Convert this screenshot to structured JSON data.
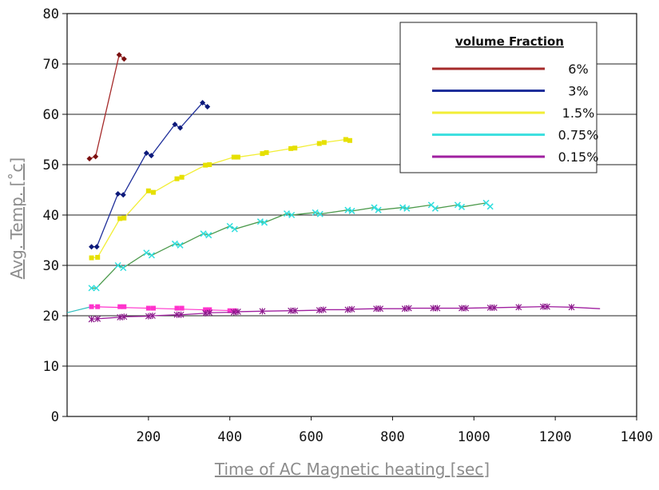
{
  "chart_data": {
    "type": "line",
    "xlabel": "Time of AC Magnetic heating [sec]",
    "ylabel": "Avg. Temp. [˚c]",
    "xlim": [
      0,
      1400
    ],
    "ylim": [
      0,
      80
    ],
    "xticks": [
      0,
      200,
      400,
      600,
      800,
      1000,
      1200,
      1400
    ],
    "yticks": [
      0,
      10,
      20,
      30,
      40,
      50,
      60,
      70,
      80
    ],
    "grid": "horizontal",
    "legend": {
      "title": "volume Fraction",
      "placement": "top-right"
    },
    "series": [
      {
        "name": "6%",
        "color": "#a52a2a",
        "marker_color": "#7a0f0f",
        "marker": "diamond",
        "x": [
          55,
          70,
          128,
          140
        ],
        "y": [
          51.2,
          51.6,
          71.8,
          71.0
        ],
        "marker_x": [
          55,
          70,
          128,
          140
        ],
        "marker_y": [
          51.2,
          51.6,
          71.8,
          71.0
        ]
      },
      {
        "name": "3%",
        "color": "#1f2f9a",
        "marker_color": "#0d1a7a",
        "marker": "diamond",
        "x": [
          60,
          73,
          125,
          138,
          195,
          207,
          265,
          278,
          333,
          345
        ],
        "y": [
          33.7,
          33.7,
          44.2,
          44.0,
          52.3,
          51.8,
          58.0,
          57.3,
          62.3,
          61.5
        ],
        "marker_x": [
          60,
          73,
          125,
          138,
          195,
          207,
          265,
          278,
          333,
          345
        ],
        "marker_y": [
          33.7,
          33.7,
          44.2,
          44.0,
          52.3,
          51.8,
          58.0,
          57.3,
          62.3,
          61.5
        ]
      },
      {
        "name": "1.5%",
        "color": "#f2ee36",
        "marker_color": "#e6e000",
        "marker": "square",
        "x": [
          60,
          75,
          130,
          140,
          200,
          212,
          270,
          282,
          340,
          350,
          410,
          420,
          480,
          490,
          550,
          560,
          620,
          632,
          685,
          695
        ],
        "y": [
          31.5,
          31.6,
          39.3,
          39.4,
          44.8,
          44.5,
          47.2,
          47.5,
          49.9,
          50.0,
          51.5,
          51.5,
          52.2,
          52.4,
          53.2,
          53.3,
          54.2,
          54.4,
          55.0,
          54.8
        ],
        "marker_x": [
          60,
          75,
          130,
          140,
          200,
          212,
          270,
          282,
          340,
          350,
          410,
          420,
          480,
          490,
          550,
          560,
          620,
          632,
          685,
          695
        ],
        "marker_y": [
          31.5,
          31.6,
          39.3,
          39.4,
          44.8,
          44.5,
          47.2,
          47.5,
          49.9,
          50.0,
          51.5,
          51.5,
          52.2,
          52.4,
          53.2,
          53.3,
          54.2,
          54.4,
          55.0,
          54.8
        ]
      },
      {
        "name": "0.75%",
        "color": "#3fe0e0",
        "marker_color": "#2fdede",
        "marker": "x",
        "line_color": "#4c9a4c",
        "x": [
          60,
          72,
          125,
          138,
          195,
          208,
          265,
          278,
          335,
          348,
          400,
          412,
          475,
          485,
          540,
          552,
          610,
          622,
          690,
          700,
          755,
          765,
          825,
          835,
          895,
          905,
          960,
          970,
          1030,
          1040
        ],
        "y": [
          25.5,
          25.5,
          30.0,
          29.5,
          32.5,
          32.0,
          34.3,
          34.0,
          36.3,
          36.0,
          37.8,
          37.2,
          38.7,
          38.5,
          40.3,
          40.0,
          40.5,
          40.2,
          41.0,
          40.8,
          41.5,
          41.0,
          41.5,
          41.3,
          42.0,
          41.3,
          42.0,
          41.6,
          42.4,
          41.7
        ],
        "marker_x": [
          60,
          72,
          125,
          138,
          195,
          208,
          265,
          278,
          335,
          348,
          400,
          412,
          475,
          485,
          540,
          552,
          610,
          622,
          690,
          700,
          755,
          765,
          825,
          835,
          895,
          905,
          960,
          970,
          1030,
          1040
        ],
        "marker_y": [
          25.5,
          25.5,
          30.0,
          29.5,
          32.5,
          32.0,
          34.3,
          34.0,
          36.3,
          36.0,
          37.8,
          37.2,
          38.7,
          38.5,
          40.3,
          40.0,
          40.5,
          40.2,
          41.0,
          40.8,
          41.5,
          41.0,
          41.5,
          41.3,
          42.0,
          41.3,
          42.0,
          41.6,
          42.4,
          41.7
        ]
      },
      {
        "name": "0.15%",
        "color": "#a020a0",
        "marker_color": "#8b1a8b",
        "marker": "asterisk",
        "x": [
          60,
          75,
          130,
          140,
          200,
          210,
          270,
          280,
          340,
          350,
          410,
          420,
          480,
          550,
          560,
          620,
          630,
          690,
          700,
          760,
          770,
          830,
          840,
          900,
          910,
          970,
          980,
          1040,
          1050,
          1110,
          1170,
          1180,
          1240,
          1310
        ],
        "y": [
          19.3,
          19.4,
          19.7,
          19.8,
          19.9,
          20.0,
          20.2,
          20.2,
          20.5,
          20.6,
          20.7,
          20.8,
          20.9,
          21.0,
          21.0,
          21.1,
          21.2,
          21.2,
          21.3,
          21.4,
          21.4,
          21.4,
          21.5,
          21.5,
          21.5,
          21.5,
          21.5,
          21.6,
          21.6,
          21.7,
          21.8,
          21.8,
          21.7,
          21.4
        ],
        "marker_x": [
          60,
          75,
          130,
          140,
          200,
          210,
          270,
          280,
          340,
          350,
          410,
          420,
          480,
          550,
          560,
          620,
          630,
          690,
          700,
          760,
          770,
          830,
          840,
          900,
          910,
          970,
          980,
          1040,
          1050,
          1110,
          1170,
          1180,
          1240
        ],
        "marker_y": [
          19.3,
          19.4,
          19.7,
          19.8,
          19.9,
          20.0,
          20.2,
          20.2,
          20.5,
          20.6,
          20.7,
          20.8,
          20.9,
          21.0,
          21.0,
          21.1,
          21.2,
          21.2,
          21.3,
          21.4,
          21.4,
          21.4,
          21.5,
          21.5,
          21.5,
          21.5,
          21.5,
          21.6,
          21.6,
          21.7,
          21.8,
          21.8,
          21.7
        ]
      }
    ],
    "extra_markers": [
      {
        "name": "pink-base",
        "color": "#ff33cc",
        "marker": "square",
        "x": [
          60,
          75,
          130,
          140,
          200,
          212,
          270,
          282,
          340,
          350,
          400,
          412
        ],
        "y": [
          21.8,
          21.8,
          21.8,
          21.8,
          21.5,
          21.5,
          21.5,
          21.5,
          21.2,
          21.2,
          21.0,
          21.0
        ]
      }
    ],
    "extra_lines": [
      {
        "name": "cyan-base",
        "color": "#2fbfbf",
        "x": [
          0,
          60,
          75
        ],
        "y": [
          20.6,
          21.8,
          21.8
        ]
      },
      {
        "name": "pink-base",
        "color": "#ff33cc",
        "x": [
          60,
          200,
          412
        ],
        "y": [
          21.8,
          21.5,
          21.0
        ]
      }
    ]
  }
}
